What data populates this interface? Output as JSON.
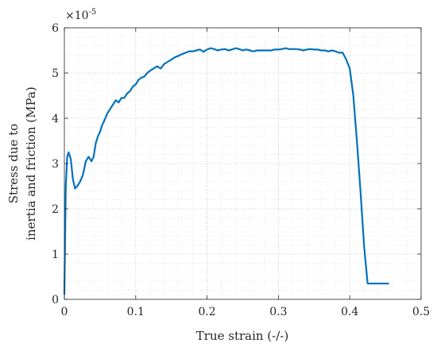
{
  "chart_data": {
    "type": "line",
    "xlabel": "True strain (-/-)",
    "ylabel_line1": "Stress due to",
    "ylabel_line2": "inertia and friction (MPa)",
    "y_exponent_base": "×10",
    "y_exponent_power": "-5",
    "xlim": [
      0,
      0.5
    ],
    "ylim": [
      0,
      6
    ],
    "x_ticks": [
      0,
      0.1,
      0.2,
      0.3,
      0.4,
      0.5
    ],
    "x_tick_labels": [
      "0",
      "0.1",
      "0.2",
      "0.3",
      "0.4",
      "0.5"
    ],
    "y_ticks": [
      0,
      1,
      2,
      3,
      4,
      5,
      6
    ],
    "y_tick_labels": [
      "0",
      "1",
      "2",
      "3",
      "4",
      "5",
      "6"
    ],
    "grid": "major and minor, dotted",
    "line_color": "#0072BD",
    "series": [
      {
        "x": [
          0.0,
          0.002,
          0.004,
          0.006,
          0.009,
          0.012,
          0.015,
          0.018,
          0.022,
          0.026,
          0.03,
          0.034,
          0.038,
          0.041,
          0.044,
          0.047,
          0.05,
          0.053,
          0.056,
          0.06,
          0.064,
          0.068,
          0.072,
          0.076,
          0.08,
          0.084,
          0.088,
          0.092,
          0.096,
          0.1,
          0.104,
          0.108,
          0.112,
          0.116,
          0.12,
          0.125,
          0.13,
          0.135,
          0.14,
          0.145,
          0.15,
          0.155,
          0.16,
          0.165,
          0.17,
          0.175,
          0.18,
          0.185,
          0.19,
          0.195,
          0.2,
          0.205,
          0.21,
          0.215,
          0.22,
          0.225,
          0.23,
          0.235,
          0.24,
          0.245,
          0.25,
          0.255,
          0.26,
          0.265,
          0.27,
          0.275,
          0.28,
          0.285,
          0.29,
          0.295,
          0.3,
          0.305,
          0.31,
          0.315,
          0.32,
          0.325,
          0.33,
          0.335,
          0.34,
          0.345,
          0.35,
          0.355,
          0.36,
          0.365,
          0.37,
          0.375,
          0.38,
          0.385,
          0.39,
          0.395,
          0.4,
          0.405,
          0.41,
          0.415,
          0.42,
          0.425,
          0.43,
          0.435,
          0.44,
          0.445,
          0.45,
          0.455
        ],
        "y": [
          0.1,
          2.5,
          3.15,
          3.25,
          3.1,
          2.65,
          2.45,
          2.5,
          2.6,
          2.75,
          3.05,
          3.15,
          3.05,
          3.15,
          3.45,
          3.6,
          3.7,
          3.85,
          3.95,
          4.1,
          4.2,
          4.3,
          4.4,
          4.35,
          4.45,
          4.45,
          4.55,
          4.6,
          4.7,
          4.75,
          4.85,
          4.9,
          4.92,
          5.0,
          5.05,
          5.1,
          5.15,
          5.1,
          5.2,
          5.25,
          5.3,
          5.35,
          5.38,
          5.42,
          5.45,
          5.48,
          5.48,
          5.5,
          5.52,
          5.47,
          5.52,
          5.55,
          5.53,
          5.5,
          5.52,
          5.53,
          5.5,
          5.52,
          5.55,
          5.53,
          5.5,
          5.52,
          5.5,
          5.48,
          5.5,
          5.5,
          5.5,
          5.5,
          5.5,
          5.52,
          5.52,
          5.53,
          5.55,
          5.53,
          5.53,
          5.53,
          5.52,
          5.5,
          5.52,
          5.53,
          5.52,
          5.52,
          5.5,
          5.5,
          5.48,
          5.5,
          5.48,
          5.45,
          5.45,
          5.3,
          5.1,
          4.5,
          3.5,
          2.4,
          1.2,
          0.35,
          0.35,
          0.35,
          0.35,
          0.35,
          0.35,
          0.35
        ]
      }
    ]
  }
}
